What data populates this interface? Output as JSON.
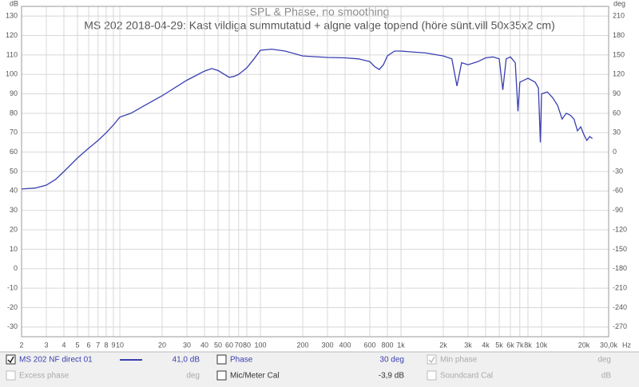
{
  "chart_data": {
    "type": "line",
    "title": "SPL & Phase, no smoothing",
    "subtitle": "MS 202 2018-04-29: Kast vildiga summutatud + algne valge topend (höre sünt.vill 50x35x2 cm)",
    "ylabel": "dB",
    "y2label": "deg",
    "xlabel": "Hz",
    "xscale": "log",
    "grid": true,
    "xlim": [
      2,
      30000
    ],
    "xticks": [
      2,
      3,
      4,
      5,
      6,
      7,
      8,
      9,
      10,
      20,
      30,
      40,
      50,
      60,
      70,
      80,
      100,
      200,
      300,
      400,
      600,
      800,
      {
        "value": 1000,
        "label": "1k"
      },
      {
        "value": 2000,
        "label": "2k"
      },
      {
        "value": 3000,
        "label": "3k"
      },
      {
        "value": 4000,
        "label": "4k"
      },
      {
        "value": 5000,
        "label": "5k"
      },
      {
        "value": 6000,
        "label": "6k"
      },
      {
        "value": 7000,
        "label": "7k"
      },
      {
        "value": 8000,
        "label": "8k"
      },
      {
        "value": 10000,
        "label": "10k"
      },
      {
        "value": 20000,
        "label": "20k"
      },
      {
        "value": 30000,
        "label": "30,0k"
      }
    ],
    "ylim": [
      -35,
      135
    ],
    "yticks": [
      -30,
      -20,
      -10,
      0,
      10,
      20,
      30,
      40,
      50,
      60,
      70,
      80,
      90,
      100,
      110,
      120,
      130
    ],
    "y2lim": [
      -285,
      225
    ],
    "y2ticks": [
      -270,
      -240,
      -210,
      -180,
      -150,
      -120,
      -90,
      -60,
      -30,
      0,
      30,
      60,
      90,
      120,
      150,
      180,
      210
    ],
    "x": [
      2,
      2.5,
      3,
      3.5,
      4,
      5,
      6,
      7,
      8,
      9,
      10,
      12,
      15,
      20,
      30,
      40,
      45,
      50,
      60,
      65,
      70,
      80,
      90,
      100,
      120,
      150,
      200,
      300,
      400,
      500,
      600,
      650,
      700,
      750,
      800,
      900,
      1000,
      1500,
      2000,
      2300,
      2500,
      2700,
      3000,
      3500,
      4000,
      4500,
      5000,
      5300,
      5600,
      6000,
      6500,
      6800,
      7000,
      8000,
      9000,
      9500,
      9800,
      10000,
      11000,
      12000,
      13000,
      14000,
      15000,
      16000,
      17000,
      18000,
      19000,
      20000,
      21000,
      22000,
      23000
    ],
    "series": [
      {
        "name": "MS 202 NF direct 01",
        "color": "#3a3fb0",
        "values": [
          41,
          41.5,
          43,
          46,
          50,
          57,
          62,
          66,
          70,
          74,
          78,
          80,
          84,
          89,
          97,
          101.7,
          103,
          102,
          98.5,
          99,
          100,
          103.4,
          108,
          112.4,
          113,
          112,
          109.5,
          108.7,
          108.5,
          108,
          106.6,
          104,
          102.5,
          105,
          109.5,
          112,
          112,
          111,
          109.5,
          108,
          94,
          106,
          105,
          106.5,
          108.5,
          109,
          108,
          92,
          108,
          109,
          106,
          81,
          96,
          98,
          96,
          93,
          65,
          90,
          91,
          88,
          84,
          77,
          80,
          79,
          77,
          71,
          73,
          69,
          66,
          68,
          67
        ]
      }
    ]
  },
  "panel": [
    {
      "checked": true,
      "value": "41,0 dB"
    },
    {
      "checked": false,
      "label": "Phase",
      "value": "30 deg"
    },
    {
      "checked": true,
      "disabled": true,
      "label": "Min phase",
      "value": "deg"
    },
    {
      "checked": false,
      "disabled": true,
      "label": "Excess phase",
      "value": "deg"
    },
    {
      "checked": false,
      "label": "Mic/Meter Cal",
      "value": "-3,9 dB"
    },
    {
      "checked": false,
      "disabled": true,
      "label": "Soundcard Cal",
      "value": "dB"
    }
  ]
}
